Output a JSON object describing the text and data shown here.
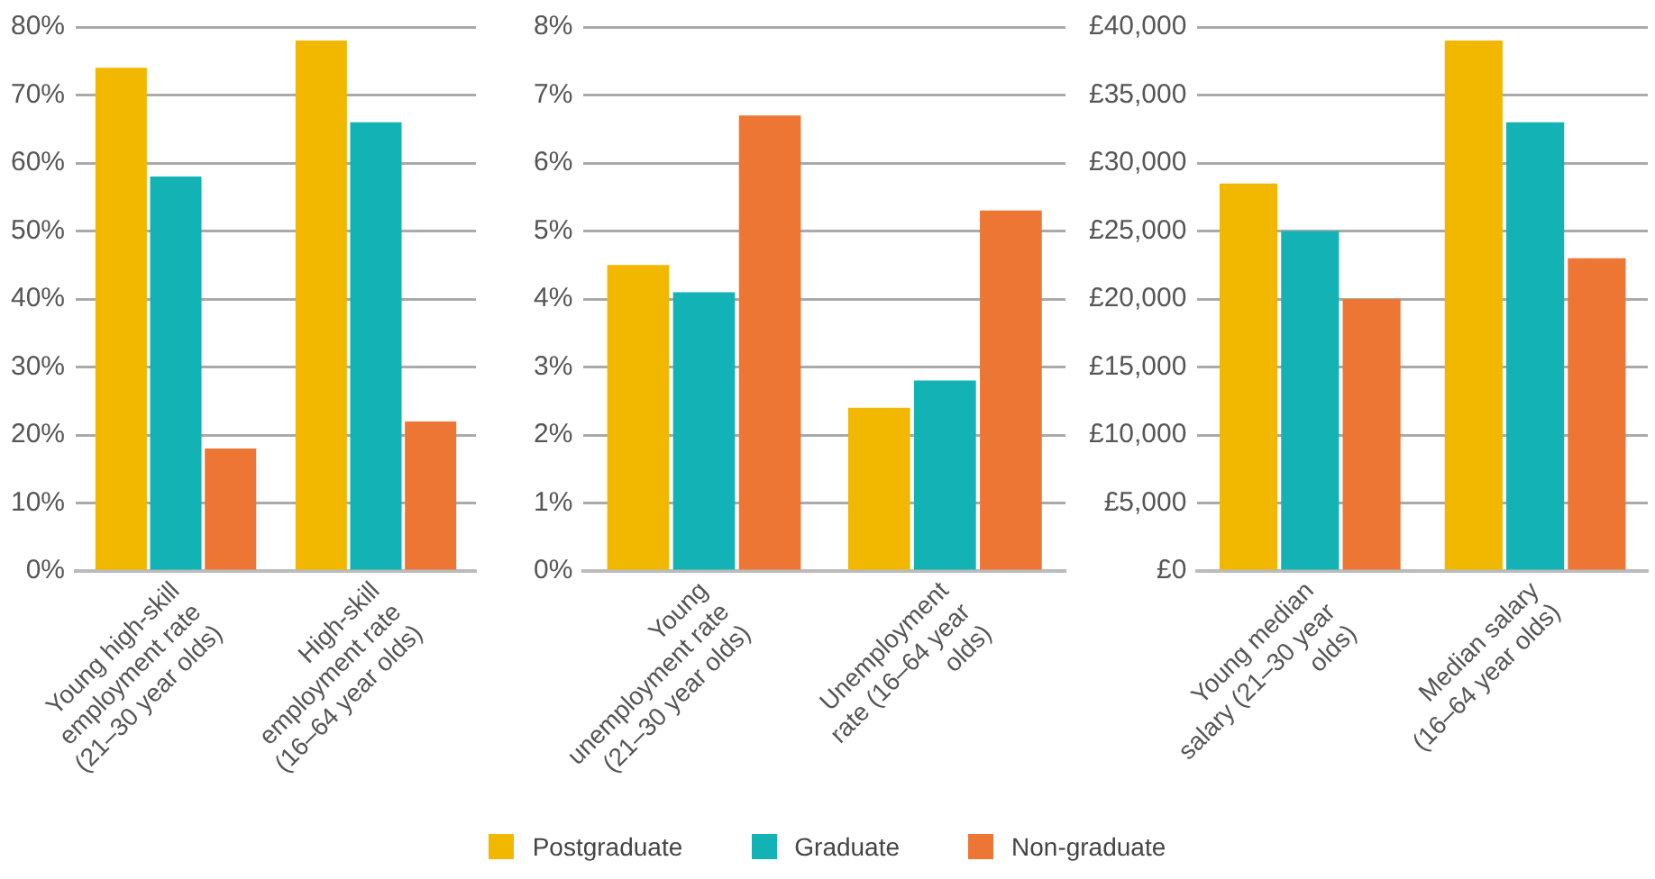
{
  "chart_data": [
    {
      "type": "bar",
      "categories": [
        "Young high-skill employment rate (21–30 year olds)",
        "High-skill employment rate (16–64 year olds)"
      ],
      "series": [
        {
          "name": "Postgraduate",
          "color": "#f2b800",
          "values": [
            74,
            78
          ]
        },
        {
          "name": "Graduate",
          "color": "#13b3b5",
          "values": [
            58,
            66
          ]
        },
        {
          "name": "Non-graduate",
          "color": "#ed7635",
          "values": [
            18,
            22
          ]
        }
      ],
      "ylim": [
        0,
        80
      ],
      "yticks": [
        {
          "value": 0,
          "label": "0%"
        },
        {
          "value": 10,
          "label": "10%"
        },
        {
          "value": 20,
          "label": "20%"
        },
        {
          "value": 30,
          "label": "30%"
        },
        {
          "value": 40,
          "label": "40%"
        },
        {
          "value": 50,
          "label": "50%"
        },
        {
          "value": 60,
          "label": "60%"
        },
        {
          "value": 70,
          "label": "70%"
        },
        {
          "value": 80,
          "label": "80%"
        }
      ],
      "grid": "y",
      "legend": "bottom"
    },
    {
      "type": "bar",
      "categories": [
        "Young unemployment rate (21–30 year olds)",
        "Unemployment rate (16–64 year olds)"
      ],
      "series": [
        {
          "color": "#f2b800",
          "values": [
            4.5,
            2.4
          ]
        },
        {
          "color": "#13b3b5",
          "values": [
            4.1,
            2.8
          ]
        },
        {
          "color": "#ed7635",
          "values": [
            6.7,
            5.3
          ]
        }
      ],
      "ylim": [
        0,
        8
      ],
      "yticks": [
        {
          "value": 0,
          "label": "0%"
        },
        {
          "value": 1,
          "label": "1%"
        },
        {
          "value": 2,
          "label": "2%"
        },
        {
          "value": 3,
          "label": "3%"
        },
        {
          "value": 4,
          "label": "4%"
        },
        {
          "value": 5,
          "label": "5%"
        },
        {
          "value": 6,
          "label": "6%"
        },
        {
          "value": 7,
          "label": "7%"
        },
        {
          "value": 8,
          "label": "8%"
        }
      ],
      "grid": "y"
    },
    {
      "type": "bar",
      "categories": [
        "Young median salary (21–30 year olds)",
        "Median salary (16–64 year olds)"
      ],
      "series": [
        {
          "color": "#f2b800",
          "values": [
            28500,
            39000
          ]
        },
        {
          "color": "#13b3b5",
          "values": [
            25000,
            33000
          ]
        },
        {
          "color": "#ed7635",
          "values": [
            20000,
            23000
          ]
        }
      ],
      "ylim": [
        0,
        40000
      ],
      "yticks": [
        {
          "value": 0,
          "label": "£0"
        },
        {
          "value": 5000,
          "label": "£5,000"
        },
        {
          "value": 10000,
          "label": "£10,000"
        },
        {
          "value": 15000,
          "label": "£15,000"
        },
        {
          "value": 20000,
          "label": "£20,000"
        },
        {
          "value": 25000,
          "label": "£25,000"
        },
        {
          "value": 30000,
          "label": "£30,000"
        },
        {
          "value": 35000,
          "label": "£35,000"
        },
        {
          "value": 40000,
          "label": "£40,000"
        }
      ],
      "grid": "y"
    }
  ]
}
